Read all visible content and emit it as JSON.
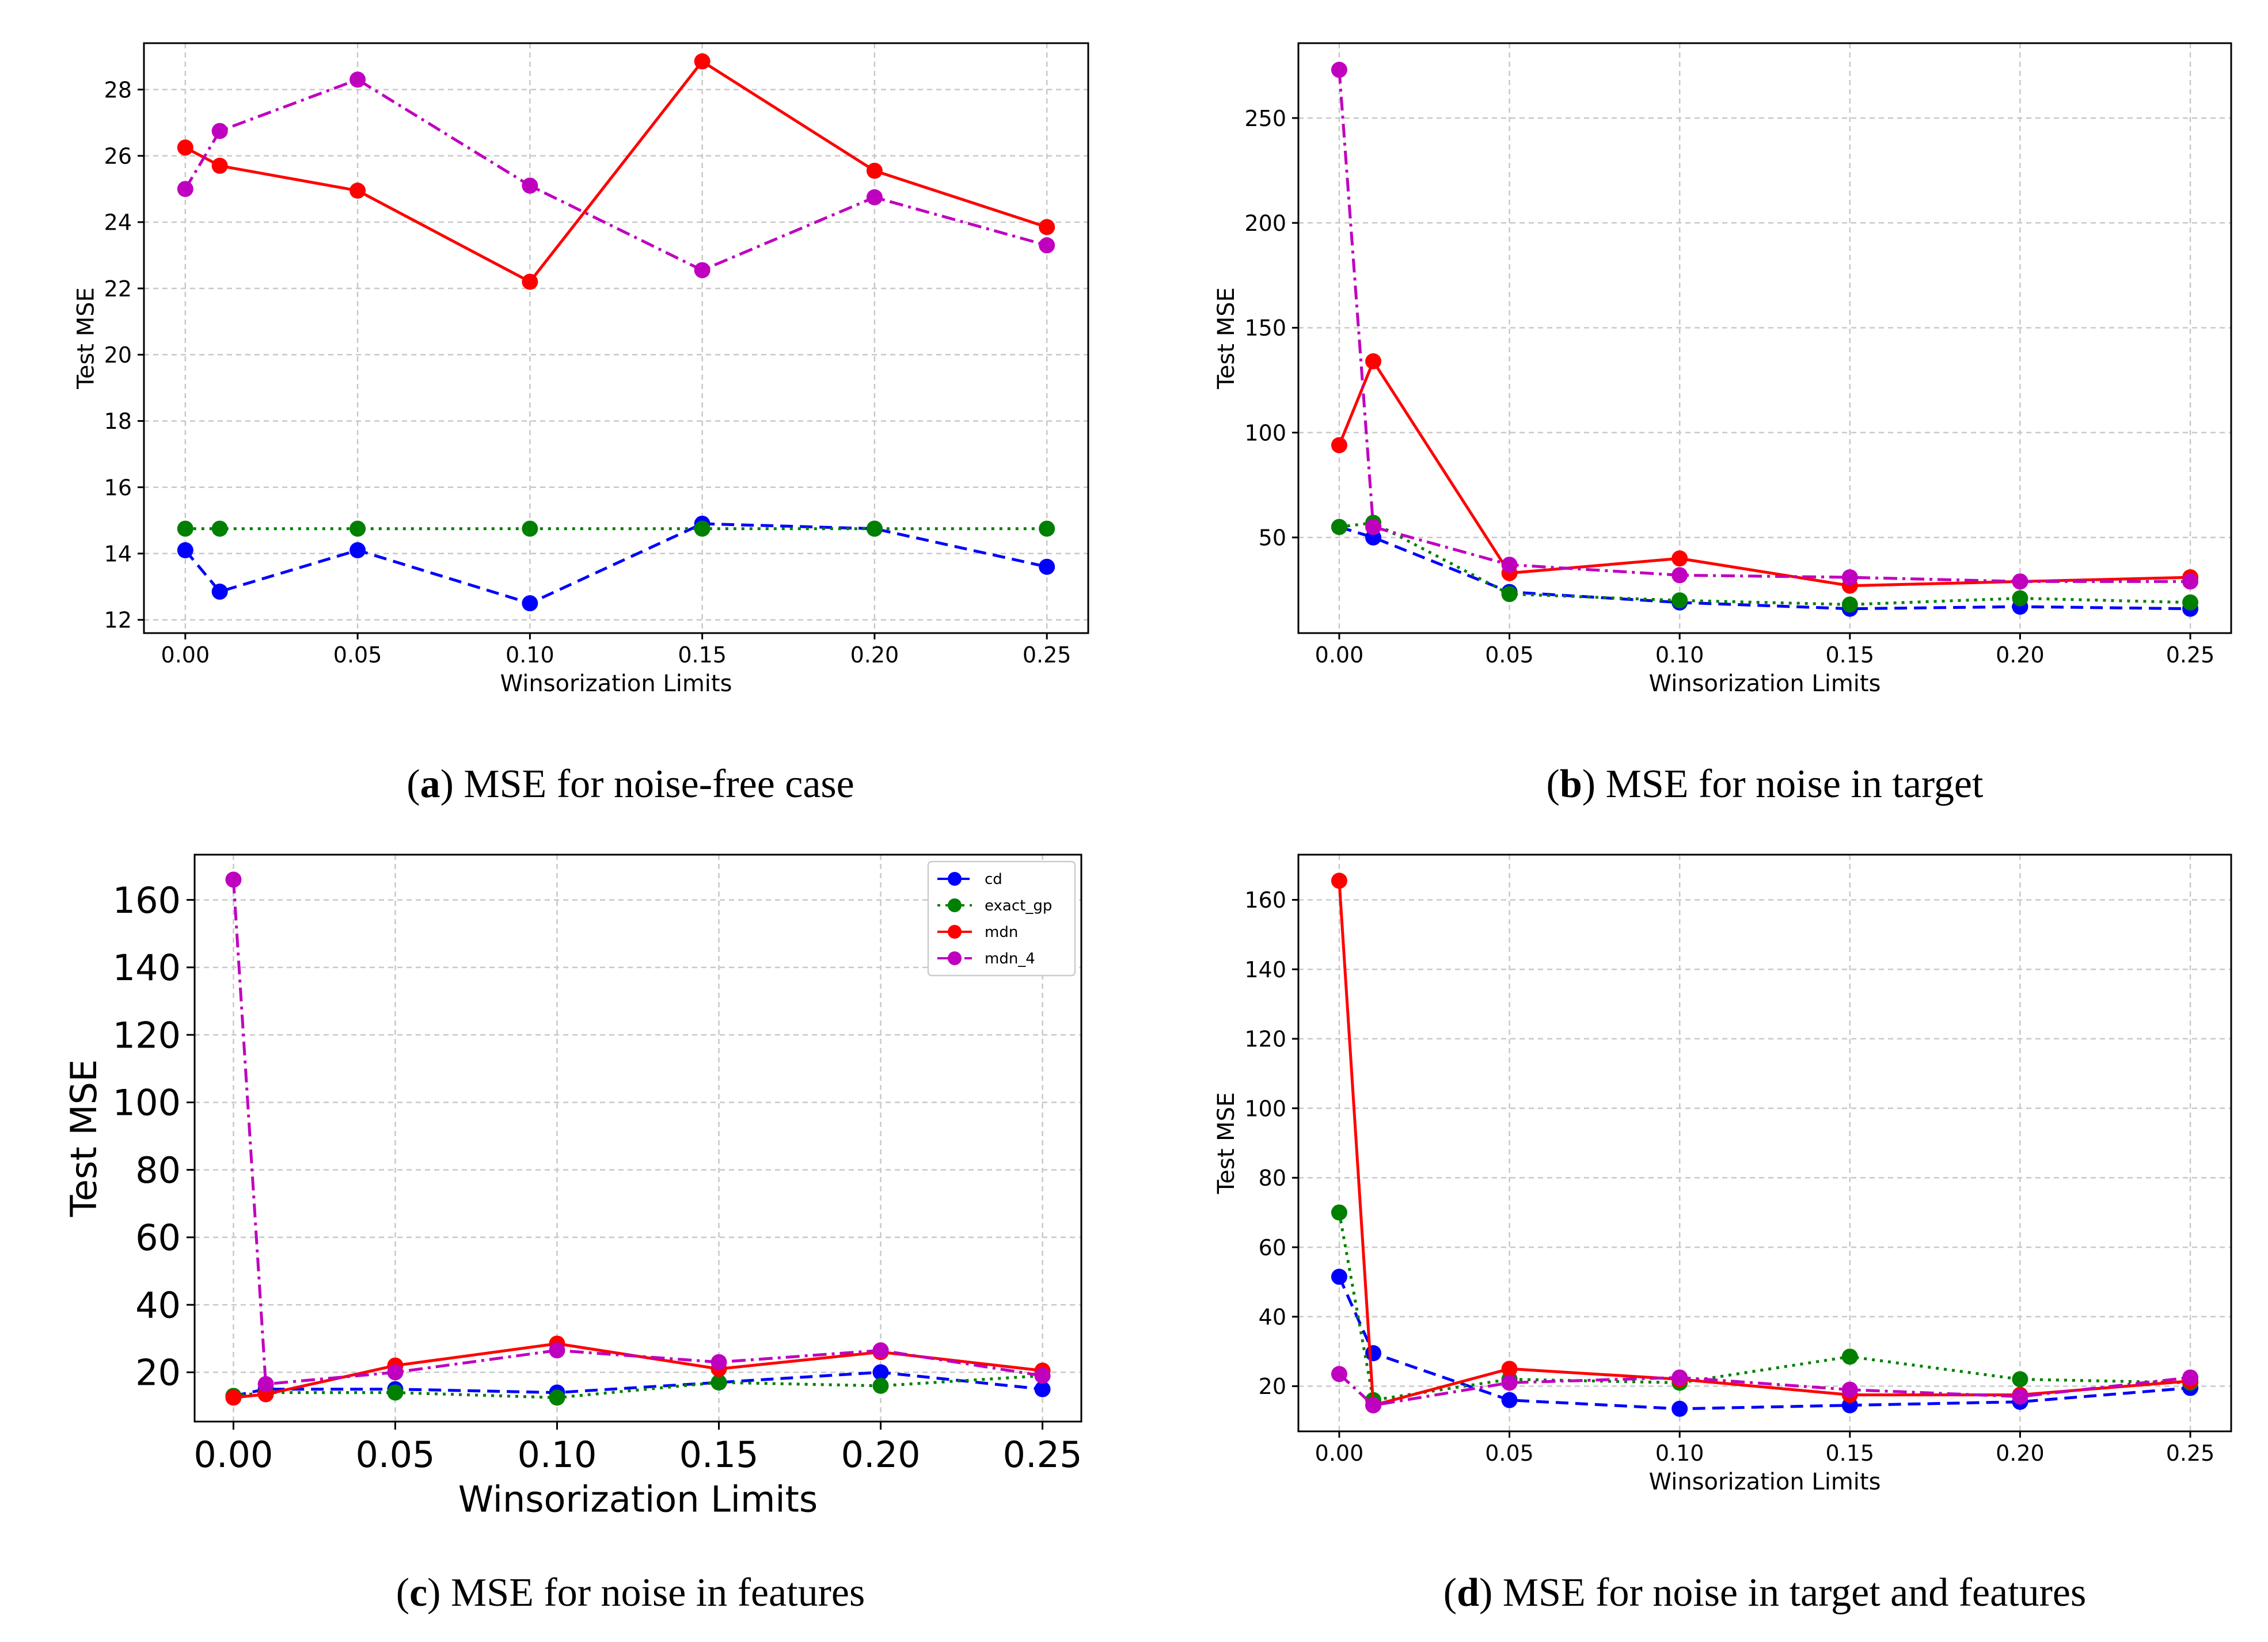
{
  "chart_data": [
    {
      "type": "line",
      "caption": {
        "letter": "a",
        "text": ") MSE for noise-free case"
      },
      "xlabel": "Winsorization Limits",
      "ylabel": "Test MSE",
      "xlim": [
        -0.012,
        0.262
      ],
      "ylim": [
        11.6,
        29.4
      ],
      "xticks": [
        0.0,
        0.05,
        0.1,
        0.15,
        0.2,
        0.25
      ],
      "xtick_labels": [
        "0.00",
        "0.05",
        "0.10",
        "0.15",
        "0.20",
        "0.25"
      ],
      "yticks": [
        12,
        14,
        16,
        18,
        20,
        22,
        24,
        26,
        28
      ],
      "ytick_labels": [
        "12",
        "14",
        "16",
        "18",
        "20",
        "22",
        "24",
        "26",
        "28"
      ],
      "grid": true,
      "x": [
        0.0,
        0.01,
        0.05,
        0.1,
        0.15,
        0.2,
        0.25
      ],
      "series": [
        {
          "name": "cd",
          "color": "#0000ff",
          "style": "dashed",
          "values": [
            14.1,
            12.85,
            14.1,
            12.5,
            14.9,
            14.75,
            13.6
          ]
        },
        {
          "name": "exact_gp",
          "color": "#008000",
          "style": "dotted",
          "values": [
            14.75,
            14.75,
            14.75,
            14.75,
            14.75,
            14.75,
            14.75
          ]
        },
        {
          "name": "mdn",
          "color": "#ff0000",
          "style": "solid",
          "values": [
            26.25,
            25.7,
            24.95,
            22.2,
            28.85,
            25.55,
            23.85
          ]
        },
        {
          "name": "mdn_4",
          "color": "#bf00bf",
          "style": "dashdot",
          "values": [
            25.0,
            26.75,
            28.3,
            25.1,
            22.55,
            24.75,
            23.3
          ]
        }
      ]
    },
    {
      "type": "line",
      "caption": {
        "letter": "b",
        "text": ") MSE for noise in target"
      },
      "xlabel": "Winsorization Limits",
      "ylabel": "Test MSE",
      "xlim": [
        -0.012,
        0.262
      ],
      "ylim": [
        4.4,
        285.7
      ],
      "xticks": [
        0.0,
        0.05,
        0.1,
        0.15,
        0.2,
        0.25
      ],
      "xtick_labels": [
        "0.00",
        "0.05",
        "0.10",
        "0.15",
        "0.20",
        "0.25"
      ],
      "yticks": [
        50,
        100,
        150,
        200,
        250
      ],
      "ytick_labels": [
        "50",
        "100",
        "150",
        "200",
        "250"
      ],
      "grid": true,
      "x": [
        0.0,
        0.01,
        0.05,
        0.1,
        0.15,
        0.2,
        0.25
      ],
      "series": [
        {
          "name": "cd",
          "color": "#0000ff",
          "style": "dashed",
          "values": [
            55,
            50,
            24,
            19,
            16,
            17,
            16
          ]
        },
        {
          "name": "exact_gp",
          "color": "#008000",
          "style": "dotted",
          "values": [
            55,
            57,
            23,
            20,
            18,
            21,
            19
          ]
        },
        {
          "name": "mdn",
          "color": "#ff0000",
          "style": "solid",
          "values": [
            94,
            134,
            33,
            40,
            27,
            29,
            31
          ]
        },
        {
          "name": "mdn_4",
          "color": "#bf00bf",
          "style": "dashdot",
          "values": [
            273,
            55,
            37,
            32,
            31,
            29,
            29
          ]
        }
      ]
    },
    {
      "type": "line",
      "caption": {
        "letter": "c",
        "text": ") MSE for noise in features"
      },
      "xlabel": "Winsorization Limits",
      "ylabel": "Test MSE",
      "xlim": [
        -0.012,
        0.262
      ],
      "ylim": [
        5.4,
        173.4
      ],
      "xticks": [
        0.0,
        0.05,
        0.1,
        0.15,
        0.2,
        0.25
      ],
      "xtick_labels": [
        "0.00",
        "0.05",
        "0.10",
        "0.15",
        "0.20",
        "0.25"
      ],
      "yticks": [
        20,
        40,
        60,
        80,
        100,
        120,
        140,
        160
      ],
      "ytick_labels": [
        "20",
        "40",
        "60",
        "80",
        "100",
        "120",
        "140",
        "160"
      ],
      "grid": true,
      "legend": {
        "position": "top-right",
        "entries": [
          "cd",
          "exact_gp",
          "mdn",
          "mdn_4"
        ]
      },
      "x": [
        0.0,
        0.01,
        0.05,
        0.1,
        0.15,
        0.2,
        0.25
      ],
      "series": [
        {
          "name": "cd",
          "color": "#0000ff",
          "style": "dashed",
          "values": [
            13,
            15,
            15,
            14,
            17,
            20,
            15
          ]
        },
        {
          "name": "exact_gp",
          "color": "#008000",
          "style": "dotted",
          "values": [
            13,
            14,
            14,
            12.5,
            17,
            16,
            19
          ]
        },
        {
          "name": "mdn",
          "color": "#ff0000",
          "style": "solid",
          "values": [
            12.5,
            13.5,
            22,
            28.5,
            21,
            26,
            20.5
          ]
        },
        {
          "name": "mdn_4",
          "color": "#bf00bf",
          "style": "dashdot",
          "values": [
            166,
            16.5,
            20,
            26.5,
            23,
            26.5,
            19
          ]
        }
      ]
    },
    {
      "type": "line",
      "caption": {
        "letter": "d",
        "text": ") MSE for noise in target and features"
      },
      "xlabel": "Winsorization Limits",
      "ylabel": "Test MSE",
      "xlim": [
        -0.012,
        0.262
      ],
      "ylim": [
        7.0,
        173.0
      ],
      "xticks": [
        0.0,
        0.05,
        0.1,
        0.15,
        0.2,
        0.25
      ],
      "xtick_labels": [
        "0.00",
        "0.05",
        "0.10",
        "0.15",
        "0.20",
        "0.25"
      ],
      "yticks": [
        20,
        40,
        60,
        80,
        100,
        120,
        140,
        160
      ],
      "ytick_labels": [
        "20",
        "40",
        "60",
        "80",
        "100",
        "120",
        "140",
        "160"
      ],
      "grid": true,
      "x": [
        0.0,
        0.01,
        0.05,
        0.1,
        0.15,
        0.2,
        0.25
      ],
      "series": [
        {
          "name": "cd",
          "color": "#0000ff",
          "style": "dashed",
          "values": [
            51.5,
            29.5,
            16,
            13.5,
            14.5,
            15.5,
            19.5
          ]
        },
        {
          "name": "exact_gp",
          "color": "#008000",
          "style": "dotted",
          "values": [
            70,
            16,
            22,
            21,
            28.5,
            22,
            21
          ]
        },
        {
          "name": "mdn",
          "color": "#ff0000",
          "style": "solid",
          "values": [
            165.5,
            14.5,
            25,
            22,
            17.5,
            17.5,
            21.5
          ]
        },
        {
          "name": "mdn_4",
          "color": "#bf00bf",
          "style": "dashdot",
          "values": [
            23.5,
            14.5,
            21,
            22.5,
            19,
            17,
            22.5
          ]
        }
      ]
    }
  ]
}
